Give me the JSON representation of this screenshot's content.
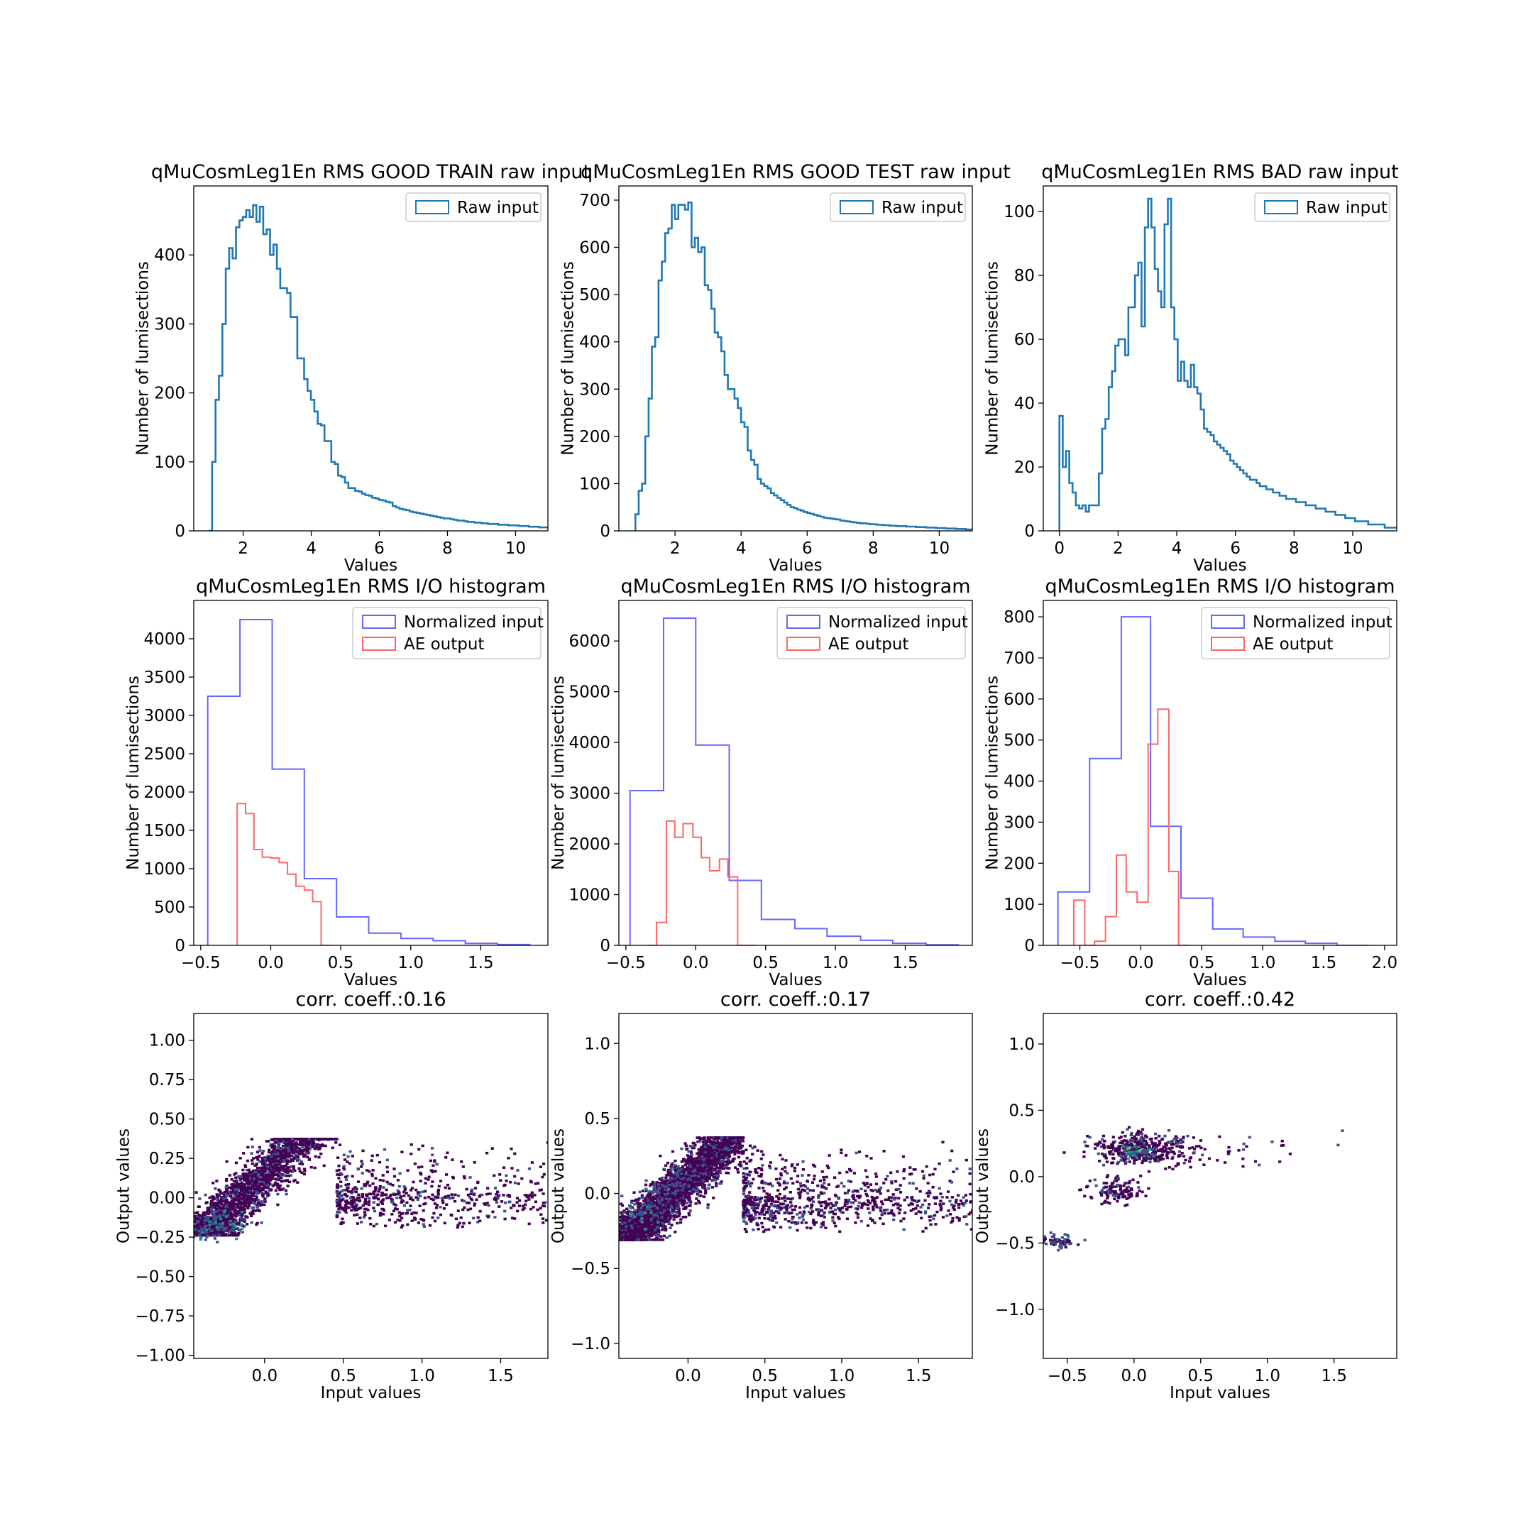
{
  "figure": {
    "layout": "3x3 grid of subplots"
  },
  "colors": {
    "raw": "#1f77b4",
    "normalized": "#6666ff",
    "ae": "#ff6666",
    "axes": "#000000",
    "legend_border": "#cccccc"
  },
  "chart_data": [
    {
      "type": "histogram",
      "style": "step",
      "title": "qMuCosmLeg1En RMS GOOD TRAIN raw input",
      "xlabel": "Values",
      "ylabel": "Number of lumisections",
      "xlim": [
        0.55,
        10.95
      ],
      "ylim": [
        0,
        500
      ],
      "xticks": [
        2,
        4,
        6,
        8,
        10
      ],
      "xtick_labels": [
        "2",
        "4",
        "6",
        "8",
        "10"
      ],
      "yticks": [
        0,
        100,
        200,
        300,
        400
      ],
      "ytick_labels": [
        "0",
        "100",
        "200",
        "300",
        "400"
      ],
      "legend": {
        "position": "upper right"
      },
      "series": [
        {
          "name": "Raw input",
          "color": "#1f77b4",
          "bin_start": 0.99,
          "bin_width": 0.1,
          "counts": [
            0,
            100,
            190,
            225,
            300,
            380,
            410,
            395,
            440,
            450,
            455,
            465,
            455,
            472,
            448,
            470,
            430,
            437,
            400,
            415,
            380,
            352,
            352,
            345,
            310,
            310,
            250,
            250,
            220,
            203,
            190,
            173,
            155,
            153,
            130,
            130,
            100,
            97,
            80,
            78,
            70,
            62,
            62,
            58,
            57,
            54,
            52,
            51,
            48,
            47,
            45,
            44,
            42,
            41,
            36,
            34,
            32,
            31,
            30,
            28,
            27,
            26,
            25,
            24,
            23,
            22,
            21,
            20,
            19,
            18,
            18,
            17,
            16,
            15,
            15,
            14,
            13,
            13,
            12,
            12,
            11,
            11,
            10,
            10,
            10,
            9,
            9,
            9,
            8,
            8,
            8,
            7,
            7,
            7,
            6,
            6,
            6,
            5,
            5,
            5,
            4,
            4,
            4,
            3,
            3,
            3,
            3,
            2,
            2,
            2,
            2,
            2,
            1,
            1,
            1,
            1,
            1,
            1,
            1,
            1
          ]
        }
      ]
    },
    {
      "type": "histogram",
      "style": "step",
      "title": "qMuCosmLeg1En RMS GOOD TEST raw input",
      "xlabel": "Values",
      "ylabel": "Number of lumisections",
      "xlim": [
        0.3,
        11.0
      ],
      "ylim": [
        0,
        730
      ],
      "xticks": [
        2,
        4,
        6,
        8,
        10
      ],
      "xtick_labels": [
        "2",
        "4",
        "6",
        "8",
        "10"
      ],
      "yticks": [
        0,
        100,
        200,
        300,
        400,
        500,
        600,
        700
      ],
      "ytick_labels": [
        "0",
        "100",
        "200",
        "300",
        "400",
        "500",
        "600",
        "700"
      ],
      "legend": {
        "position": "upper right"
      },
      "series": [
        {
          "name": "Raw input",
          "color": "#1f77b4",
          "bin_start": 0.8,
          "bin_width": 0.1,
          "counts": [
            35,
            85,
            100,
            200,
            280,
            390,
            410,
            530,
            570,
            630,
            640,
            690,
            660,
            690,
            690,
            680,
            695,
            600,
            620,
            590,
            600,
            520,
            510,
            470,
            420,
            410,
            380,
            330,
            300,
            300,
            280,
            260,
            230,
            220,
            170,
            150,
            140,
            110,
            100,
            95,
            90,
            80,
            75,
            70,
            65,
            60,
            55,
            50,
            48,
            45,
            43,
            40,
            38,
            36,
            34,
            32,
            30,
            28,
            27,
            26,
            25,
            24,
            22,
            21,
            20,
            19,
            18,
            17,
            16,
            16,
            15,
            14,
            14,
            13,
            13,
            12,
            12,
            11,
            11,
            10,
            10,
            10,
            9,
            9,
            9,
            8,
            8,
            8,
            7,
            7,
            7,
            6,
            6,
            6,
            5,
            5,
            5,
            4,
            4,
            4,
            3,
            3,
            3,
            3,
            2,
            2,
            2,
            2,
            2,
            1,
            1,
            1,
            1,
            1,
            1,
            1,
            1,
            1,
            1,
            1
          ]
        }
      ]
    },
    {
      "type": "histogram",
      "style": "step",
      "title": "qMuCosmLeg1En RMS BAD raw input",
      "xlabel": "Values",
      "ylabel": "Number of lumisections",
      "xlim": [
        -0.55,
        11.5
      ],
      "ylim": [
        0,
        108
      ],
      "xticks": [
        0,
        2,
        4,
        6,
        8,
        10
      ],
      "xtick_labels": [
        "0",
        "2",
        "4",
        "6",
        "8",
        "10"
      ],
      "yticks": [
        0,
        20,
        40,
        60,
        80,
        100
      ],
      "ytick_labels": [
        "0",
        "20",
        "40",
        "60",
        "80",
        "100"
      ],
      "legend": {
        "position": "upper right"
      },
      "series": [
        {
          "name": "Raw input",
          "color": "#1f77b4",
          "bin_start": 0.0,
          "bin_width": 0.112,
          "counts": [
            36,
            20,
            25,
            15,
            12,
            8,
            7,
            8,
            6,
            8,
            8,
            8,
            18,
            32,
            35,
            45,
            50,
            58,
            60,
            60,
            55,
            70,
            70,
            80,
            84,
            64,
            95,
            104,
            95,
            82,
            75,
            70,
            96,
            104,
            70,
            60,
            47,
            53,
            47,
            45,
            52,
            45,
            43,
            38,
            32,
            31,
            30,
            28,
            27,
            26,
            25,
            24,
            22,
            21,
            20,
            19,
            18,
            17,
            16,
            16,
            15,
            14,
            14,
            13,
            13,
            12,
            12,
            11,
            11,
            10,
            10,
            10,
            9,
            9,
            9,
            8,
            8,
            8,
            7,
            7,
            7,
            6,
            6,
            6,
            5,
            5,
            5,
            4,
            4,
            4,
            3,
            3,
            3,
            3,
            2,
            2,
            2,
            2,
            2,
            1,
            1,
            1,
            1,
            1
          ]
        }
      ]
    },
    {
      "type": "histogram",
      "style": "step",
      "title": "qMuCosmLeg1En RMS I/O histogram",
      "xlabel": "Values",
      "ylabel": "Number of lumisections",
      "xlim": [
        -0.55,
        1.98
      ],
      "ylim": [
        0,
        4500
      ],
      "xticks": [
        -0.5,
        0.0,
        0.5,
        1.0,
        1.5
      ],
      "xtick_labels": [
        "−0.5",
        "0.0",
        "0.5",
        "1.0",
        "1.5"
      ],
      "yticks": [
        0,
        500,
        1000,
        1500,
        2000,
        2500,
        3000,
        3500,
        4000
      ],
      "ytick_labels": [
        "0",
        "500",
        "1000",
        "1500",
        "2000",
        "2500",
        "3000",
        "3500",
        "4000"
      ],
      "legend": {
        "position": "upper right"
      },
      "series": [
        {
          "name": "Normalized input",
          "color": "#6666ff",
          "edges": [
            -0.45,
            -0.22,
            0.01,
            0.24,
            0.47,
            0.7,
            0.93,
            1.16,
            1.39,
            1.62,
            1.85
          ],
          "counts": [
            3250,
            4250,
            2300,
            870,
            370,
            160,
            90,
            60,
            25,
            10
          ]
        },
        {
          "name": "AE output",
          "color": "#ff6666",
          "edges": [
            -0.24,
            -0.18,
            -0.12,
            -0.06,
            0.0,
            0.06,
            0.12,
            0.18,
            0.24,
            0.3,
            0.36,
            0.42
          ],
          "counts": [
            1850,
            1720,
            1250,
            1150,
            1140,
            1080,
            930,
            770,
            720,
            570,
            0
          ]
        }
      ]
    },
    {
      "type": "histogram",
      "style": "step",
      "title": "qMuCosmLeg1En RMS I/O histogram",
      "xlabel": "Values",
      "ylabel": "Number of lumisections",
      "xlim": [
        -0.55,
        1.98
      ],
      "ylim": [
        0,
        6800
      ],
      "xticks": [
        -0.5,
        0.0,
        0.5,
        1.0,
        1.5
      ],
      "xtick_labels": [
        "−0.5",
        "0.0",
        "0.5",
        "1.0",
        "1.5"
      ],
      "yticks": [
        0,
        1000,
        2000,
        3000,
        4000,
        5000,
        6000
      ],
      "ytick_labels": [
        "0",
        "1000",
        "2000",
        "3000",
        "4000",
        "5000",
        "6000"
      ],
      "legend": {
        "position": "upper right"
      },
      "series": [
        {
          "name": "Normalized input",
          "color": "#6666ff",
          "edges": [
            -0.47,
            -0.23,
            0.0,
            0.24,
            0.47,
            0.71,
            0.94,
            1.18,
            1.41,
            1.65,
            1.88
          ],
          "counts": [
            3050,
            6450,
            3950,
            1280,
            510,
            330,
            180,
            100,
            40,
            10
          ]
        },
        {
          "name": "AE output",
          "color": "#ff6666",
          "edges": [
            -0.34,
            -0.28,
            -0.21,
            -0.15,
            -0.09,
            -0.02,
            0.04,
            0.1,
            0.17,
            0.23,
            0.3,
            0.36,
            0.42
          ],
          "counts": [
            0,
            450,
            2450,
            2130,
            2400,
            2130,
            1730,
            1470,
            1700,
            1350,
            0,
            0
          ]
        }
      ]
    },
    {
      "type": "histogram",
      "style": "step",
      "title": "qMuCosmLeg1En RMS I/O histogram",
      "xlabel": "Values",
      "ylabel": "Number of lumisections",
      "xlim": [
        -0.8,
        2.1
      ],
      "ylim": [
        0,
        840
      ],
      "xticks": [
        -0.5,
        0.0,
        0.5,
        1.0,
        1.5,
        2.0
      ],
      "xtick_labels": [
        "−0.5",
        "0.0",
        "0.5",
        "1.0",
        "1.5",
        "2.0"
      ],
      "yticks": [
        0,
        100,
        200,
        300,
        400,
        500,
        600,
        700,
        800
      ],
      "ytick_labels": [
        "0",
        "100",
        "200",
        "300",
        "400",
        "500",
        "600",
        "700",
        "800"
      ],
      "legend": {
        "position": "upper right"
      },
      "series": [
        {
          "name": "Normalized input",
          "color": "#6666ff",
          "edges": [
            -0.68,
            -0.42,
            -0.16,
            0.08,
            0.33,
            0.59,
            0.84,
            1.1,
            1.35,
            1.61,
            1.87
          ],
          "counts": [
            130,
            455,
            800,
            290,
            115,
            40,
            20,
            10,
            5,
            0
          ]
        },
        {
          "name": "AE output",
          "color": "#ff6666",
          "edges": [
            -0.55,
            -0.46,
            -0.38,
            -0.29,
            -0.2,
            -0.12,
            -0.03,
            0.06,
            0.14,
            0.23,
            0.31,
            0.4
          ],
          "counts": [
            110,
            0,
            10,
            70,
            220,
            130,
            105,
            490,
            575,
            180,
            0
          ]
        }
      ]
    },
    {
      "type": "heatmap",
      "subtype": "2d-histogram",
      "title": "corr. coeff.:0.16",
      "xlabel": "Input values",
      "ylabel": "Output values",
      "xlim": [
        -0.45,
        1.8
      ],
      "ylim": [
        -1.02,
        1.17
      ],
      "xticks": [
        0.0,
        0.5,
        1.0,
        1.5
      ],
      "xtick_labels": [
        "0.0",
        "0.5",
        "1.0",
        "1.5"
      ],
      "yticks": [
        -1.0,
        -0.75,
        -0.5,
        -0.25,
        0.0,
        0.25,
        0.5,
        0.75,
        1.0
      ],
      "ytick_labels": [
        "−1.00",
        "−0.75",
        "−0.50",
        "−0.25",
        "0.00",
        "0.25",
        "0.50",
        "0.75",
        "1.00"
      ],
      "colormap": "viridis",
      "distribution": {
        "x_min": -0.45,
        "x_core": [
          -0.45,
          0.45
        ],
        "y_floor": -0.23,
        "y_ceiling": 0.38,
        "ridge_slope": 1.0,
        "ridge_intercept": 0.2,
        "tail_x_max": 1.8,
        "seed": 11,
        "n": 3200
      },
      "density": [
        {
          "x": -0.4,
          "y": -0.21,
          "level": 0.55
        },
        {
          "x": -0.3,
          "y": -0.13,
          "level": 0.4
        },
        {
          "x": -0.25,
          "y": -0.18,
          "level": 0.5
        }
      ]
    },
    {
      "type": "heatmap",
      "subtype": "2d-histogram",
      "title": "corr. coeff.:0.17",
      "xlabel": "Input values",
      "ylabel": "Output values",
      "xlim": [
        -0.45,
        1.85
      ],
      "ylim": [
        -1.1,
        1.2
      ],
      "xticks": [
        0.0,
        0.5,
        1.0,
        1.5
      ],
      "xtick_labels": [
        "0.0",
        "0.5",
        "1.0",
        "1.5"
      ],
      "yticks": [
        -1.0,
        -0.5,
        0.0,
        0.5,
        1.0
      ],
      "ytick_labels": [
        "−1.0",
        "−0.5",
        "0.0",
        "0.5",
        "1.0"
      ],
      "colormap": "viridis",
      "distribution": {
        "x_min": -0.45,
        "x_core": [
          -0.45,
          0.35
        ],
        "y_floor": -0.3,
        "y_ceiling": 0.38,
        "ridge_slope": 1.0,
        "ridge_intercept": 0.15,
        "tail_x_max": 1.85,
        "seed": 23,
        "n": 4200
      },
      "density": [
        {
          "x": -0.3,
          "y": -0.13,
          "level": 0.55
        },
        {
          "x": -0.15,
          "y": 0.02,
          "level": 0.45
        },
        {
          "x": -0.05,
          "y": 0.12,
          "level": 0.35
        }
      ]
    },
    {
      "type": "heatmap",
      "subtype": "2d-histogram",
      "title": "corr. coeff.:0.42",
      "xlabel": "Input values",
      "ylabel": "Output values",
      "xlim": [
        -0.68,
        1.97
      ],
      "ylim": [
        -1.37,
        1.23
      ],
      "xticks": [
        -0.5,
        0.0,
        0.5,
        1.0,
        1.5
      ],
      "xtick_labels": [
        "−0.5",
        "0.0",
        "0.5",
        "1.0",
        "1.5"
      ],
      "yticks": [
        -1.0,
        -0.5,
        0.0,
        0.5,
        1.0
      ],
      "ytick_labels": [
        "−1.0",
        "−0.5",
        "0.0",
        "0.5",
        "1.0"
      ],
      "colormap": "viridis",
      "clusters": [
        {
          "x": 0.05,
          "y": 0.22,
          "sx": 0.18,
          "sy": 0.06,
          "n": 380
        },
        {
          "x": -0.15,
          "y": -0.1,
          "sx": 0.1,
          "sy": 0.05,
          "n": 120
        },
        {
          "x": -0.6,
          "y": -0.48,
          "sx": 0.06,
          "sy": 0.015,
          "n": 60
        },
        {
          "x": 0.5,
          "y": 0.2,
          "sx": 0.5,
          "sy": 0.08,
          "n": 70
        }
      ],
      "density": [
        {
          "x": 0.0,
          "y": 0.2,
          "level": 0.6
        },
        {
          "x": -0.55,
          "y": -0.48,
          "level": 0.35
        }
      ]
    }
  ]
}
